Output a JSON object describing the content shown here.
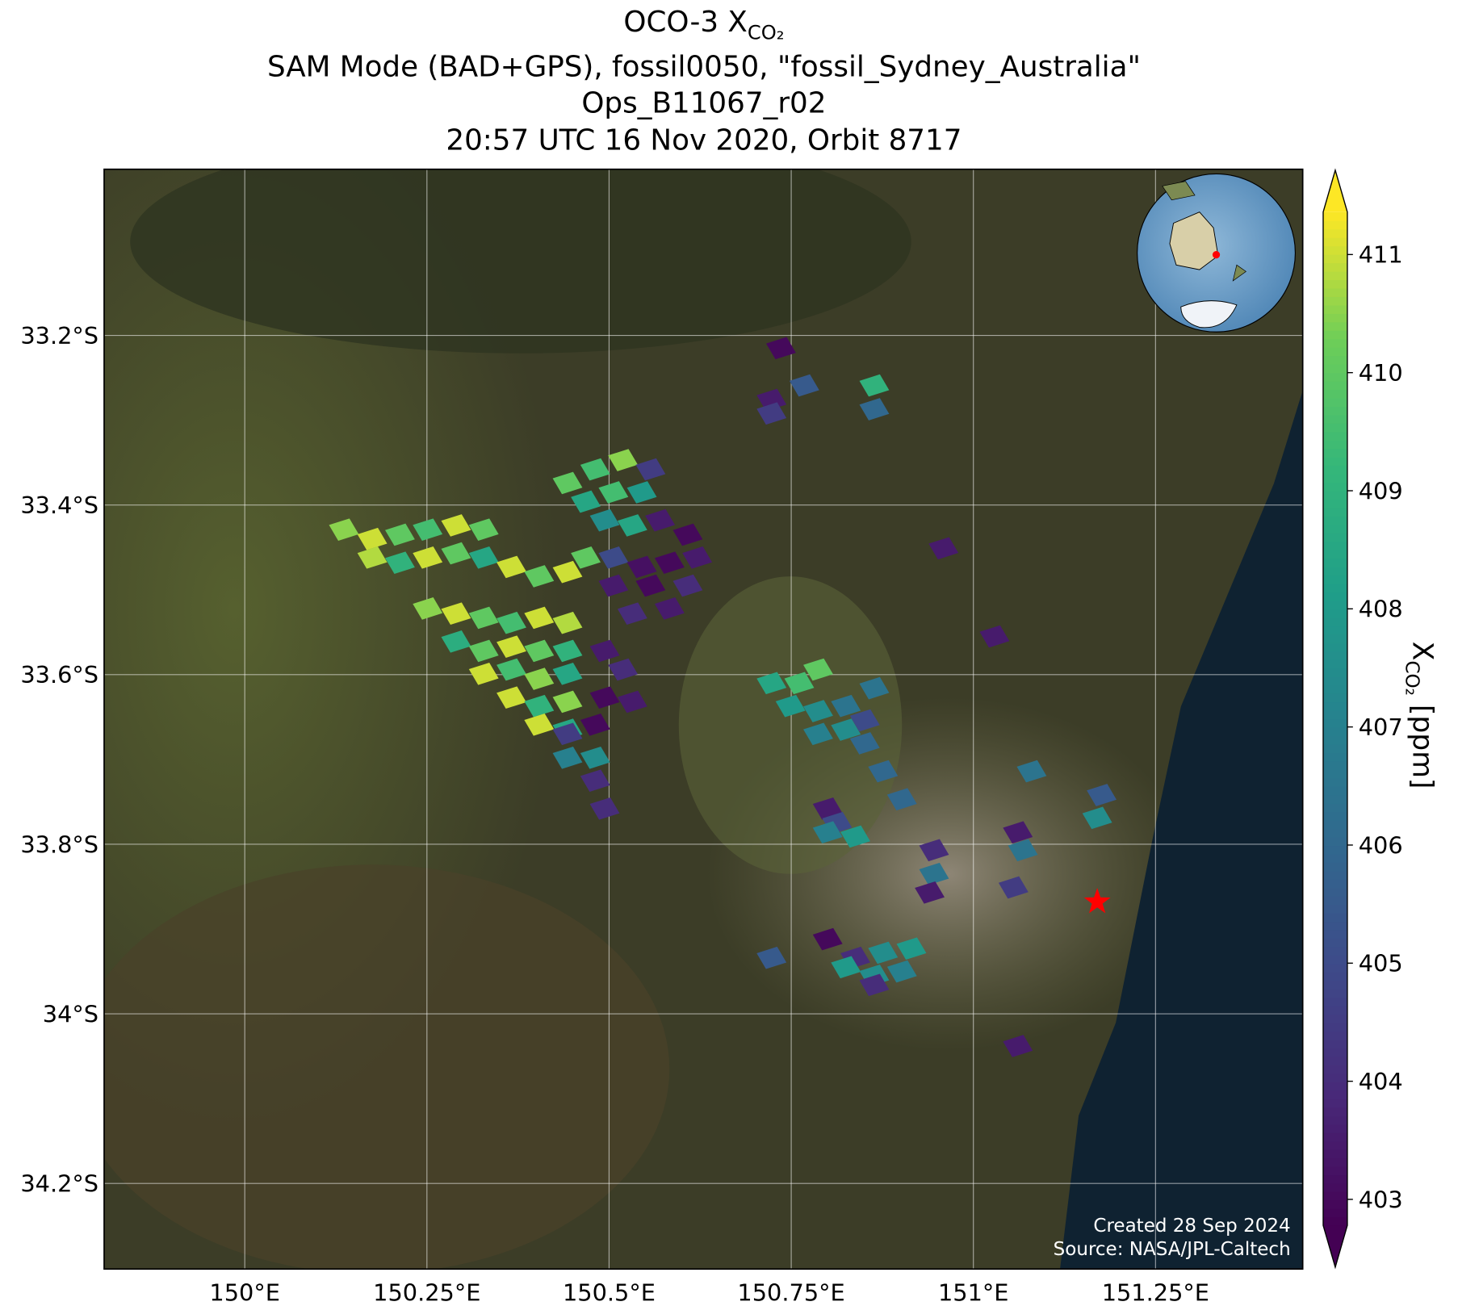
{
  "chart_data": {
    "type": "map",
    "title": "OCO-3 X",
    "title_subscript": "CO₂",
    "subtitle": [
      "SAM Mode (BAD+GPS), fossil0050, \"fossil_Sydney_Australia\"",
      "Ops_B11067_r02",
      "20:57 UTC 16 Nov 2020, Orbit 8717"
    ],
    "xlim": [
      149.807,
      151.452
    ],
    "ylim": [
      -34.301,
      -33.004
    ],
    "xticks": [
      {
        "value": 150,
        "label": "150°E"
      },
      {
        "value": 150.25,
        "label": "150.25°E"
      },
      {
        "value": 150.5,
        "label": "150.5°E"
      },
      {
        "value": 150.75,
        "label": "150.75°E"
      },
      {
        "value": 151,
        "label": "151°E"
      },
      {
        "value": 151.25,
        "label": "151.25°E"
      }
    ],
    "yticks": [
      {
        "value": -33.2,
        "label": "33.2°S"
      },
      {
        "value": -33.4,
        "label": "33.4°S"
      },
      {
        "value": -33.6,
        "label": "33.6°S"
      },
      {
        "value": -33.8,
        "label": "33.8°S"
      },
      {
        "value": -34,
        "label": "34°S"
      },
      {
        "value": -34.2,
        "label": "34.2°S"
      }
    ],
    "grid": true,
    "colorbar": {
      "label": "X",
      "label_subscript": "CO₂",
      "label_suffix": " [ppm]",
      "colormap": "viridis",
      "clim": [
        402.78,
        411.36
      ],
      "ticks": [
        403,
        404,
        405,
        406,
        407,
        408,
        409,
        410,
        411
      ]
    },
    "footprints": [
      [
        150.136,
        -33.429,
        410.5
      ],
      [
        150.175,
        -33.44,
        411
      ],
      [
        150.213,
        -33.435,
        410
      ],
      [
        150.251,
        -33.429,
        409.5
      ],
      [
        150.29,
        -33.424,
        411
      ],
      [
        150.328,
        -33.429,
        410
      ],
      [
        150.175,
        -33.462,
        410.8
      ],
      [
        150.213,
        -33.468,
        409
      ],
      [
        150.251,
        -33.462,
        411
      ],
      [
        150.29,
        -33.457,
        410
      ],
      [
        150.328,
        -33.462,
        408.5
      ],
      [
        150.366,
        -33.473,
        411
      ],
      [
        150.404,
        -33.484,
        410
      ],
      [
        150.443,
        -33.479,
        411
      ],
      [
        150.468,
        -33.462,
        410
      ],
      [
        150.251,
        -33.522,
        410.5
      ],
      [
        150.29,
        -33.528,
        411
      ],
      [
        150.328,
        -33.533,
        410
      ],
      [
        150.366,
        -33.539,
        409.5
      ],
      [
        150.404,
        -33.533,
        411
      ],
      [
        150.443,
        -33.539,
        410.8
      ],
      [
        150.29,
        -33.561,
        408.8
      ],
      [
        150.328,
        -33.572,
        410
      ],
      [
        150.366,
        -33.567,
        411
      ],
      [
        150.404,
        -33.572,
        410
      ],
      [
        150.443,
        -33.572,
        409
      ],
      [
        150.328,
        -33.599,
        411
      ],
      [
        150.366,
        -33.594,
        409.5
      ],
      [
        150.404,
        -33.605,
        410.5
      ],
      [
        150.443,
        -33.599,
        408.5
      ],
      [
        150.366,
        -33.627,
        411
      ],
      [
        150.404,
        -33.637,
        409
      ],
      [
        150.443,
        -33.632,
        410.5
      ],
      [
        150.404,
        -33.659,
        411
      ],
      [
        150.443,
        -33.665,
        408.5
      ],
      [
        150.443,
        -33.374,
        410
      ],
      [
        150.481,
        -33.358,
        409.5
      ],
      [
        150.519,
        -33.347,
        410.5
      ],
      [
        150.557,
        -33.358,
        404.5
      ],
      [
        150.468,
        -33.396,
        408.5
      ],
      [
        150.506,
        -33.385,
        409.5
      ],
      [
        150.545,
        -33.385,
        408
      ],
      [
        150.494,
        -33.418,
        407.5
      ],
      [
        150.532,
        -33.424,
        408.5
      ],
      [
        150.57,
        -33.418,
        403.5
      ],
      [
        150.608,
        -33.435,
        403
      ],
      [
        150.506,
        -33.462,
        405
      ],
      [
        150.545,
        -33.473,
        403.2
      ],
      [
        150.583,
        -33.468,
        403
      ],
      [
        150.621,
        -33.462,
        403.5
      ],
      [
        150.506,
        -33.495,
        403.5
      ],
      [
        150.557,
        -33.495,
        403
      ],
      [
        150.608,
        -33.495,
        404
      ],
      [
        150.532,
        -33.528,
        404
      ],
      [
        150.583,
        -33.522,
        403.5
      ],
      [
        150.494,
        -33.572,
        403.5
      ],
      [
        150.519,
        -33.594,
        404
      ],
      [
        150.494,
        -33.627,
        403
      ],
      [
        150.532,
        -33.632,
        403.5
      ],
      [
        150.443,
        -33.67,
        404.5
      ],
      [
        150.481,
        -33.659,
        403
      ],
      [
        150.443,
        -33.698,
        407
      ],
      [
        150.481,
        -33.698,
        407.5
      ],
      [
        150.481,
        -33.725,
        404
      ],
      [
        150.494,
        -33.758,
        404
      ],
      [
        150.736,
        -33.215,
        403
      ],
      [
        150.768,
        -33.259,
        405.5
      ],
      [
        150.723,
        -33.276,
        403.5
      ],
      [
        150.723,
        -33.292,
        404.5
      ],
      [
        150.864,
        -33.259,
        409
      ],
      [
        150.864,
        -33.287,
        406
      ],
      [
        150.959,
        -33.451,
        403.5
      ],
      [
        151.029,
        -33.555,
        403.5
      ],
      [
        150.723,
        -33.61,
        408.5
      ],
      [
        150.761,
        -33.61,
        409.5
      ],
      [
        150.787,
        -33.594,
        410
      ],
      [
        150.749,
        -33.637,
        408
      ],
      [
        150.787,
        -33.643,
        407.5
      ],
      [
        150.825,
        -33.637,
        406.5
      ],
      [
        150.787,
        -33.67,
        407
      ],
      [
        150.825,
        -33.665,
        407.5
      ],
      [
        150.864,
        -33.616,
        406.5
      ],
      [
        150.851,
        -33.654,
        405
      ],
      [
        150.851,
        -33.681,
        406
      ],
      [
        150.876,
        -33.714,
        406
      ],
      [
        150.902,
        -33.747,
        406
      ],
      [
        150.8,
        -33.758,
        403.5
      ],
      [
        150.813,
        -33.775,
        405
      ],
      [
        150.838,
        -33.791,
        408
      ],
      [
        150.8,
        -33.786,
        407
      ],
      [
        150.946,
        -33.807,
        404
      ],
      [
        150.946,
        -33.835,
        406.5
      ],
      [
        150.94,
        -33.857,
        403.5
      ],
      [
        151.08,
        -33.714,
        406.5
      ],
      [
        151.176,
        -33.742,
        405.5
      ],
      [
        151.17,
        -33.769,
        407.5
      ],
      [
        151.061,
        -33.786,
        403.5
      ],
      [
        151.068,
        -33.807,
        406.5
      ],
      [
        151.055,
        -33.851,
        404.5
      ],
      [
        150.8,
        -33.912,
        403
      ],
      [
        150.838,
        -33.934,
        404
      ],
      [
        150.876,
        -33.928,
        407.5
      ],
      [
        150.915,
        -33.923,
        408
      ],
      [
        150.825,
        -33.945,
        408
      ],
      [
        150.864,
        -33.955,
        407.5
      ],
      [
        150.902,
        -33.95,
        407
      ],
      [
        150.864,
        -33.966,
        404
      ],
      [
        150.723,
        -33.934,
        405.5
      ],
      [
        151.061,
        -34.038,
        403.5
      ]
    ],
    "site": {
      "lon": 151.17,
      "lat": -33.868,
      "color": "#ff0000"
    },
    "footer": [
      "Created 28 Sep 2024",
      "Source: NASA/JPL-Caltech"
    ]
  }
}
